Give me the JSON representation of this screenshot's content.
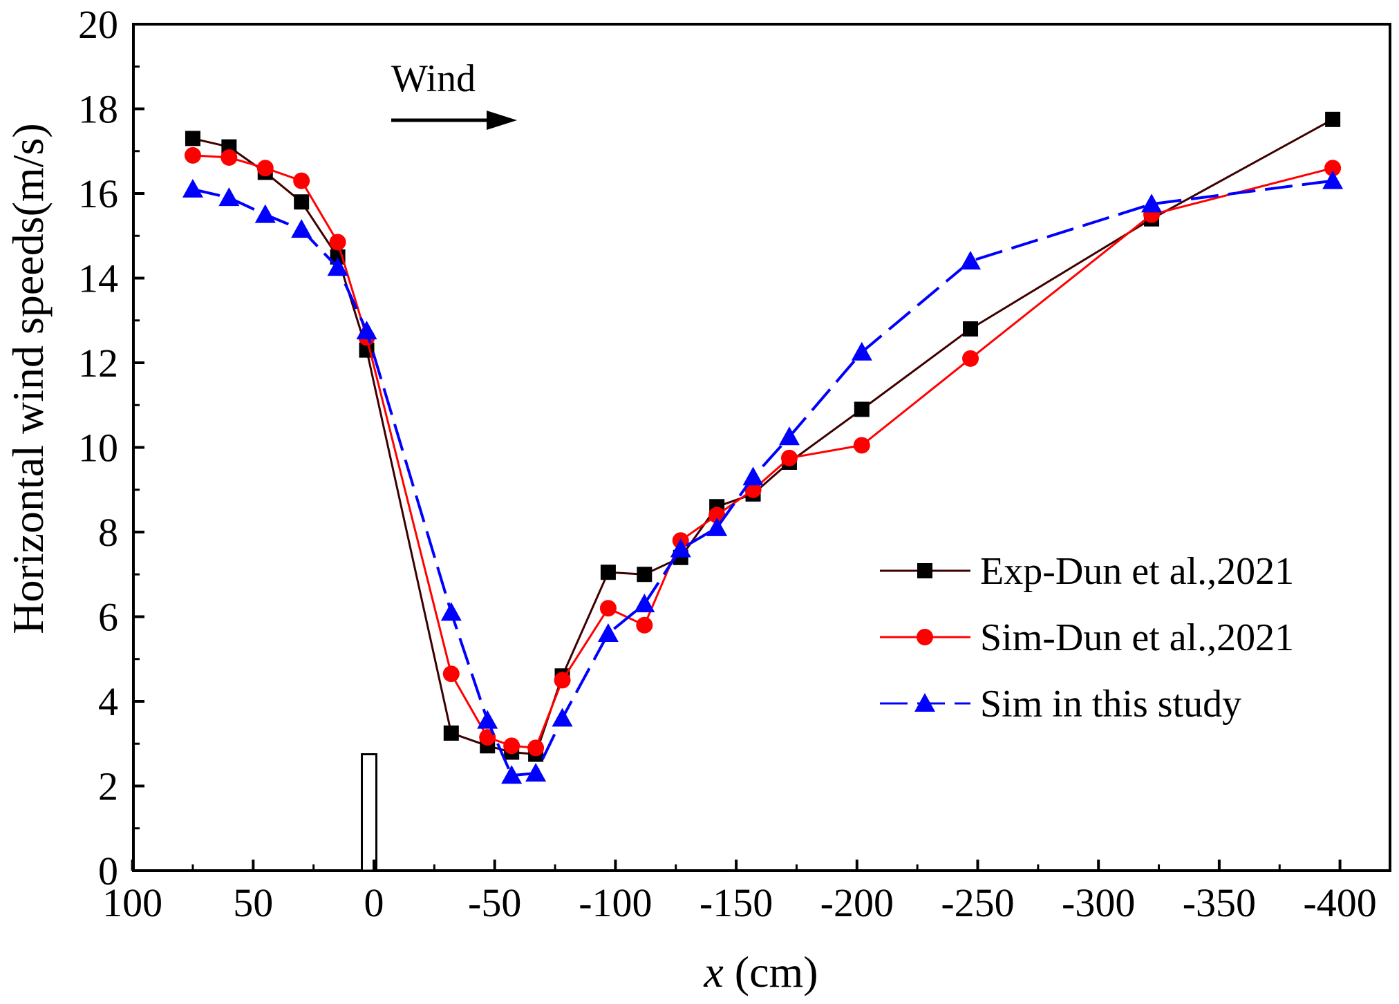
{
  "chart_data": {
    "type": "line",
    "title": "",
    "xlabel_var": "x",
    "xlabel_unit": " (cm)",
    "ylabel": "Horizontal wind speeds(m/s)",
    "xlim": [
      100,
      -410
    ],
    "ylim": [
      0,
      20
    ],
    "x_ticks": [
      100,
      50,
      0,
      -50,
      -100,
      -150,
      -200,
      -250,
      -300,
      -350,
      -400
    ],
    "x_tick_labels": [
      "100",
      "50",
      "0",
      "-50",
      "-100",
      "-150",
      "-200",
      "-250",
      "-300",
      "-350",
      "-400"
    ],
    "y_ticks": [
      0,
      2,
      4,
      6,
      8,
      10,
      12,
      14,
      16,
      18,
      20
    ],
    "y_tick_labels": [
      "0",
      "2",
      "4",
      "6",
      "8",
      "10",
      "12",
      "14",
      "16",
      "18",
      "20"
    ],
    "grid": false,
    "legend_position": "center-right",
    "annotation": {
      "text": "Wind",
      "arrow_direction": "right"
    },
    "obstacle": {
      "x_from": 5,
      "x_to": -1,
      "height": 2.75
    },
    "series": [
      {
        "name": "Exp-Dun et al.,2021",
        "color": "#3d0000",
        "marker": "square",
        "dashed": false,
        "x": [
          75,
          60,
          45,
          30,
          15,
          3,
          -32,
          -47,
          -57,
          -67,
          -78,
          -97,
          -112,
          -127,
          -142,
          -157,
          -172,
          -202,
          -247,
          -322,
          -397
        ],
        "y": [
          17.3,
          17.1,
          16.5,
          15.8,
          14.5,
          12.3,
          3.25,
          2.95,
          2.8,
          2.75,
          4.6,
          7.05,
          7.0,
          7.4,
          8.6,
          8.9,
          9.65,
          10.9,
          12.8,
          15.4,
          17.75
        ]
      },
      {
        "name": "Sim-Dun et al.,2021",
        "color": "#ff0000",
        "marker": "circle",
        "dashed": false,
        "x": [
          75,
          60,
          45,
          30,
          15,
          3,
          -32,
          -47,
          -57,
          -67,
          -78,
          -97,
          -112,
          -127,
          -142,
          -157,
          -172,
          -202,
          -247,
          -322,
          -397
        ],
        "y": [
          16.9,
          16.85,
          16.6,
          16.3,
          14.85,
          12.6,
          4.65,
          3.15,
          2.95,
          2.9,
          4.5,
          6.2,
          5.8,
          7.8,
          8.4,
          9.0,
          9.75,
          10.05,
          12.1,
          15.5,
          16.6
        ]
      },
      {
        "name": "Sim in this study",
        "color": "#0000ff",
        "marker": "triangle",
        "dashed": true,
        "x": [
          75,
          60,
          45,
          30,
          15,
          3,
          -32,
          -47,
          -57,
          -67,
          -78,
          -97,
          -112,
          -127,
          -142,
          -157,
          -172,
          -202,
          -247,
          -322,
          -397
        ],
        "y": [
          16.1,
          15.9,
          15.5,
          15.15,
          14.25,
          12.75,
          6.1,
          3.55,
          2.25,
          2.3,
          3.6,
          5.6,
          6.3,
          7.6,
          8.1,
          9.3,
          10.25,
          12.25,
          14.4,
          15.75,
          16.3
        ]
      }
    ]
  }
}
